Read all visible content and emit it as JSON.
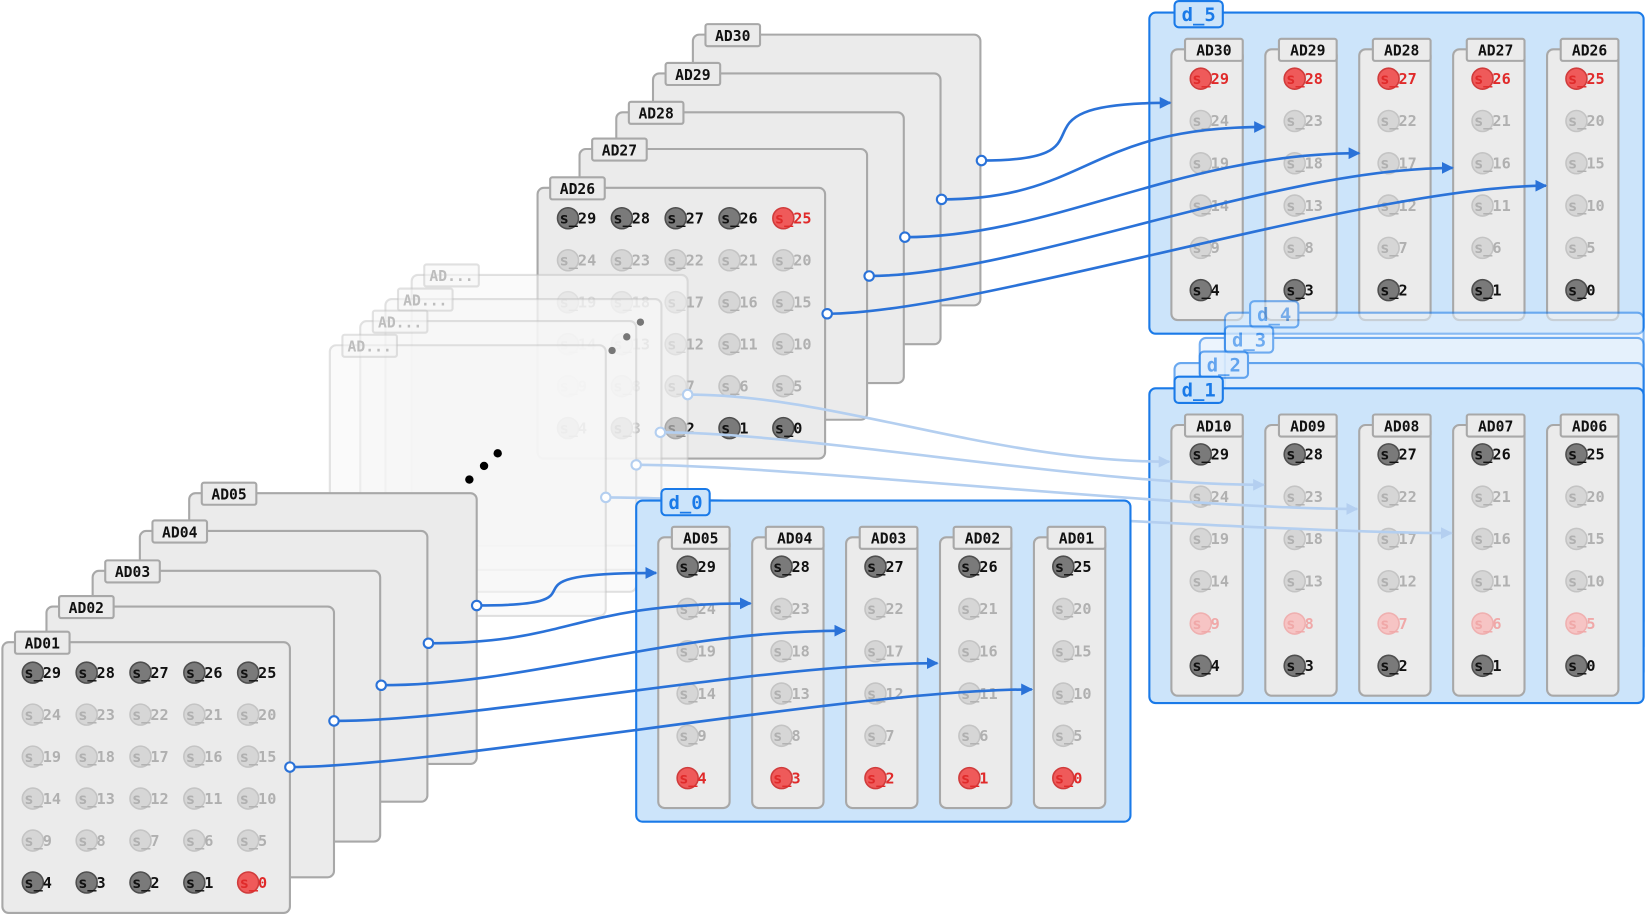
{
  "slot_grid": [
    [
      "s_29",
      "s_28",
      "s_27",
      "s_26",
      "s_25"
    ],
    [
      "s_24",
      "s_23",
      "s_22",
      "s_21",
      "s_20"
    ],
    [
      "s_19",
      "s_18",
      "s_17",
      "s_16",
      "s_15"
    ],
    [
      "s_14",
      "s_13",
      "s_12",
      "s_11",
      "s_10"
    ],
    [
      "s_9",
      "s_8",
      "s_7",
      "s_6",
      "s_5"
    ],
    [
      "s_4",
      "s_3",
      "s_2",
      "s_1",
      "s_0"
    ]
  ],
  "highlight_rows": [
    0,
    5
  ],
  "cards_top": [
    {
      "label": "AD30",
      "red": "s_29"
    },
    {
      "label": "AD29",
      "red": "s_28"
    },
    {
      "label": "AD28",
      "red": "s_27"
    },
    {
      "label": "AD27",
      "red": "s_26"
    },
    {
      "label": "AD26",
      "red": "s_25"
    }
  ],
  "cards_faded": [
    "AD...",
    "AD...",
    "AD...",
    "AD..."
  ],
  "cards_front": [
    {
      "label": "AD05",
      "red": "s_4"
    },
    {
      "label": "AD04",
      "red": "s_3"
    },
    {
      "label": "AD03",
      "red": "s_2"
    },
    {
      "label": "AD02",
      "red": "s_1"
    },
    {
      "label": "AD01",
      "red": "s_0"
    }
  ],
  "groups": {
    "d_5": {
      "label": "d_5",
      "columns": [
        {
          "label": "AD30",
          "slots": [
            "s_29",
            "s_24",
            "s_19",
            "s_14",
            "s_9",
            "s_4"
          ],
          "states": [
            "red",
            "faded",
            "faded",
            "faded",
            "faded",
            "dark"
          ]
        },
        {
          "label": "AD29",
          "slots": [
            "s_28",
            "s_23",
            "s_18",
            "s_13",
            "s_8",
            "s_3"
          ],
          "states": [
            "red",
            "faded",
            "faded",
            "faded",
            "faded",
            "dark"
          ]
        },
        {
          "label": "AD28",
          "slots": [
            "s_27",
            "s_22",
            "s_17",
            "s_12",
            "s_7",
            "s_2"
          ],
          "states": [
            "red",
            "faded",
            "faded",
            "faded",
            "faded",
            "dark"
          ]
        },
        {
          "label": "AD27",
          "slots": [
            "s_26",
            "s_21",
            "s_16",
            "s_11",
            "s_6",
            "s_1"
          ],
          "states": [
            "red",
            "faded",
            "faded",
            "faded",
            "faded",
            "dark"
          ]
        },
        {
          "label": "AD26",
          "slots": [
            "s_25",
            "s_20",
            "s_15",
            "s_10",
            "s_5",
            "s_0"
          ],
          "states": [
            "red",
            "faded",
            "faded",
            "faded",
            "faded",
            "dark"
          ]
        }
      ]
    },
    "d_4": {
      "label": "d_4"
    },
    "d_3": {
      "label": "d_3"
    },
    "d_2": {
      "label": "d_2"
    },
    "d_1": {
      "label": "d_1",
      "columns": [
        {
          "label": "AD10",
          "slots": [
            "s_29",
            "s_24",
            "s_19",
            "s_14",
            "s_9",
            "s_4"
          ],
          "states": [
            "dark",
            "faded",
            "faded",
            "faded",
            "red-faded",
            "dark"
          ]
        },
        {
          "label": "AD09",
          "slots": [
            "s_28",
            "s_23",
            "s_18",
            "s_13",
            "s_8",
            "s_3"
          ],
          "states": [
            "dark",
            "faded",
            "faded",
            "faded",
            "red-faded",
            "dark"
          ]
        },
        {
          "label": "AD08",
          "slots": [
            "s_27",
            "s_22",
            "s_17",
            "s_12",
            "s_7",
            "s_2"
          ],
          "states": [
            "dark",
            "faded",
            "faded",
            "faded",
            "red-faded",
            "dark"
          ]
        },
        {
          "label": "AD07",
          "slots": [
            "s_26",
            "s_21",
            "s_16",
            "s_11",
            "s_6",
            "s_1"
          ],
          "states": [
            "dark",
            "faded",
            "faded",
            "faded",
            "red-faded",
            "dark"
          ]
        },
        {
          "label": "AD06",
          "slots": [
            "s_25",
            "s_20",
            "s_15",
            "s_10",
            "s_5",
            "s_0"
          ],
          "states": [
            "dark",
            "faded",
            "faded",
            "faded",
            "red-faded",
            "dark"
          ]
        }
      ]
    },
    "d_0": {
      "label": "d_0",
      "columns": [
        {
          "label": "AD05",
          "slots": [
            "s_29",
            "s_24",
            "s_19",
            "s_14",
            "s_9",
            "s_4"
          ],
          "states": [
            "dark",
            "faded",
            "faded",
            "faded",
            "faded",
            "red"
          ]
        },
        {
          "label": "AD04",
          "slots": [
            "s_28",
            "s_23",
            "s_18",
            "s_13",
            "s_8",
            "s_3"
          ],
          "states": [
            "dark",
            "faded",
            "faded",
            "faded",
            "faded",
            "red"
          ]
        },
        {
          "label": "AD03",
          "slots": [
            "s_27",
            "s_22",
            "s_17",
            "s_12",
            "s_7",
            "s_2"
          ],
          "states": [
            "dark",
            "faded",
            "faded",
            "faded",
            "faded",
            "red"
          ]
        },
        {
          "label": "AD02",
          "slots": [
            "s_26",
            "s_21",
            "s_16",
            "s_11",
            "s_6",
            "s_1"
          ],
          "states": [
            "dark",
            "faded",
            "faded",
            "faded",
            "faded",
            "red"
          ]
        },
        {
          "label": "AD01",
          "slots": [
            "s_25",
            "s_20",
            "s_15",
            "s_10",
            "s_5",
            "s_0"
          ],
          "states": [
            "dark",
            "faded",
            "faded",
            "faded",
            "faded",
            "red"
          ]
        }
      ]
    }
  },
  "colors": {
    "group_fill": "#cce4fa",
    "group_stroke": "#1a7ae8",
    "arrow": "#2a72d8",
    "card_fill": "#ebebeb",
    "card_stroke": "#a8a8a8",
    "dark_slot": "#7a7a7a",
    "faded_slot": "#d6d6d6",
    "red_slot": "#ef5a5a",
    "red_text": "#e02a2a"
  }
}
